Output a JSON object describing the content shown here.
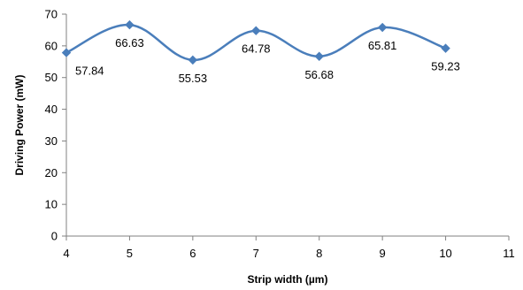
{
  "chart_data": {
    "type": "line",
    "title": "",
    "xlabel": "Strip width (µm)",
    "ylabel": "Driving Power (mW)",
    "xlim": [
      4,
      11
    ],
    "ylim": [
      0,
      70
    ],
    "x_ticks": [
      "4",
      "5",
      "6",
      "7",
      "8",
      "9",
      "10",
      "11"
    ],
    "y_ticks": [
      "0",
      "10",
      "20",
      "30",
      "40",
      "50",
      "60",
      "70"
    ],
    "grid": false,
    "legend": "none",
    "smoothed": true,
    "series": [
      {
        "color": "#4a7ebb",
        "x": [
          4,
          5,
          6,
          7,
          8,
          9,
          10
        ],
        "values": [
          57.84,
          66.63,
          55.53,
          64.78,
          56.68,
          65.81,
          59.23
        ],
        "data_labels": [
          "57.84",
          "66.63",
          "55.53",
          "64.78",
          "56.68",
          "65.81",
          "59.23"
        ]
      }
    ]
  }
}
